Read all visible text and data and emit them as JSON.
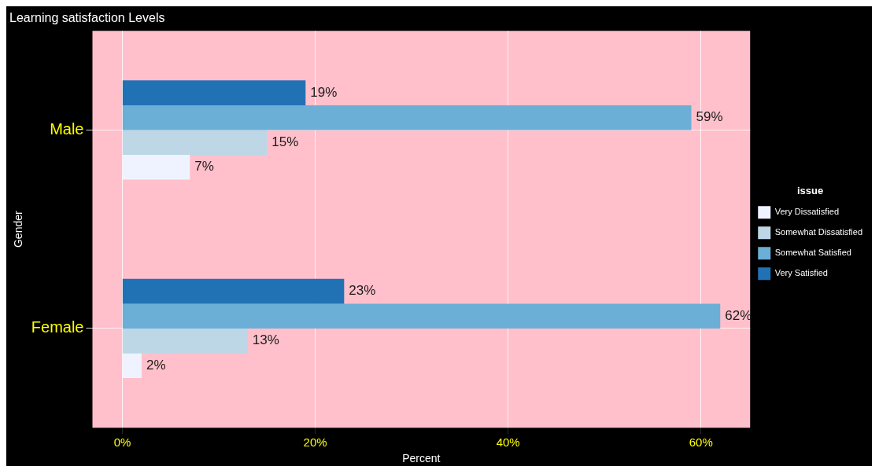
{
  "chart_data": {
    "type": "bar",
    "orientation": "horizontal",
    "title": "Learning satisfaction Levels",
    "xlabel": "Percent",
    "ylabel": "Gender",
    "legend_title": "issue",
    "legend": "right",
    "categories": [
      "Male",
      "Female"
    ],
    "series": [
      {
        "name": "Very Dissatisfied",
        "color": "#eff3ff",
        "values": [
          7,
          2
        ],
        "value_labels": [
          "7%",
          "2%"
        ]
      },
      {
        "name": "Somewhat Dissatisfied",
        "color": "#bdd7e7",
        "values": [
          15,
          13
        ],
        "value_labels": [
          "15%",
          "13%"
        ]
      },
      {
        "name": "Somewhat Satisfied",
        "color": "#6baed6",
        "values": [
          59,
          62
        ],
        "value_labels": [
          "59%",
          "62%"
        ]
      },
      {
        "name": "Very Satisfied",
        "color": "#2171b5",
        "values": [
          19,
          23
        ],
        "value_labels": [
          "19%",
          "23%"
        ]
      }
    ],
    "xlim": [
      -3.1,
      65.1
    ],
    "xticks": [
      {
        "value": 0,
        "label": "0%"
      },
      {
        "value": 20,
        "label": "20%"
      },
      {
        "value": 40,
        "label": "40%"
      },
      {
        "value": 60,
        "label": "60%"
      }
    ],
    "grid": true
  }
}
